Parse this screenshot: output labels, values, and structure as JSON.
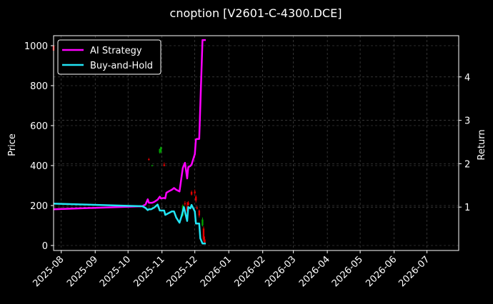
{
  "chart_data": {
    "type": "line",
    "title": "cnoption [V2601-C-4300.DCE]",
    "ylabel": "Price",
    "y2label": "Return",
    "xlim": [
      "2025-07-25",
      "2026-07-30"
    ],
    "ylim": [
      -25,
      1050
    ],
    "y2lim": [
      0.0,
      4.95
    ],
    "x_ticks": [
      "2025-08",
      "2025-09",
      "2025-10",
      "2025-11",
      "2025-12",
      "2026-01",
      "2026-02",
      "2026-03",
      "2026-04",
      "2026-05",
      "2026-06",
      "2026-07"
    ],
    "y_ticks": [
      0,
      200,
      400,
      600,
      800,
      1000
    ],
    "y2_ticks": [
      1,
      2,
      3,
      4
    ],
    "grid": true,
    "legend_position": "top-left",
    "series": [
      {
        "name": "AI Strategy",
        "axis": "right",
        "color": "#ff00ff",
        "points": [
          [
            "2025-07-25",
            0.95
          ],
          [
            "2025-10-14",
            1.02
          ],
          [
            "2025-10-17",
            1.06
          ],
          [
            "2025-10-19",
            1.18
          ],
          [
            "2025-10-20",
            1.1
          ],
          [
            "2025-10-23",
            1.1
          ],
          [
            "2025-10-25",
            1.12
          ],
          [
            "2025-10-28",
            1.17
          ],
          [
            "2025-10-30",
            1.24
          ],
          [
            "2025-10-31",
            1.2
          ],
          [
            "2025-11-03",
            1.21
          ],
          [
            "2025-11-04",
            1.2
          ],
          [
            "2025-11-05",
            1.33
          ],
          [
            "2025-11-07",
            1.36
          ],
          [
            "2025-11-10",
            1.4
          ],
          [
            "2025-11-12",
            1.44
          ],
          [
            "2025-11-14",
            1.4
          ],
          [
            "2025-11-17",
            1.36
          ],
          [
            "2025-11-20",
            1.9
          ],
          [
            "2025-11-22",
            2.02
          ],
          [
            "2025-11-24",
            1.66
          ],
          [
            "2025-11-25",
            1.92
          ],
          [
            "2025-11-27",
            1.95
          ],
          [
            "2025-11-28",
            1.98
          ],
          [
            "2025-12-01",
            2.22
          ],
          [
            "2025-12-02",
            2.56
          ],
          [
            "2025-12-03",
            2.57
          ],
          [
            "2025-12-05",
            2.57
          ],
          [
            "2025-12-08",
            4.85
          ],
          [
            "2025-12-10",
            4.85
          ],
          [
            "2025-12-11",
            4.85
          ]
        ]
      },
      {
        "name": "Buy-and-Hold",
        "axis": "right",
        "color": "#22e4f4",
        "points": [
          [
            "2025-07-25",
            1.08
          ],
          [
            "2025-10-14",
            1.02
          ],
          [
            "2025-10-17",
            0.98
          ],
          [
            "2025-10-19",
            0.93
          ],
          [
            "2025-10-20",
            0.95
          ],
          [
            "2025-10-22",
            0.95
          ],
          [
            "2025-10-25",
            0.99
          ],
          [
            "2025-10-28",
            1.06
          ],
          [
            "2025-10-30",
            0.92
          ],
          [
            "2025-11-03",
            0.92
          ],
          [
            "2025-11-04",
            0.82
          ],
          [
            "2025-11-07",
            0.86
          ],
          [
            "2025-11-10",
            0.9
          ],
          [
            "2025-11-12",
            0.9
          ],
          [
            "2025-11-14",
            0.76
          ],
          [
            "2025-11-17",
            0.64
          ],
          [
            "2025-11-19",
            0.8
          ],
          [
            "2025-11-21",
            1.0
          ],
          [
            "2025-11-24",
            0.68
          ],
          [
            "2025-11-25",
            1.0
          ],
          [
            "2025-11-27",
            0.97
          ],
          [
            "2025-11-28",
            1.05
          ],
          [
            "2025-12-01",
            0.9
          ],
          [
            "2025-12-02",
            0.62
          ],
          [
            "2025-12-05",
            0.62
          ],
          [
            "2025-12-06",
            0.28
          ],
          [
            "2025-12-08",
            0.16
          ],
          [
            "2025-12-10",
            0.16
          ],
          [
            "2025-12-11",
            0.16
          ]
        ]
      }
    ],
    "candles": [
      {
        "x": "2025-07-25",
        "open": 1000,
        "high": 1010,
        "low": 965,
        "close": 975
      },
      {
        "x": "2025-10-20",
        "open": 432,
        "high": 438,
        "low": 425,
        "close": 428
      },
      {
        "x": "2025-10-23",
        "open": 398,
        "high": 404,
        "low": 396,
        "close": 401
      },
      {
        "x": "2025-10-30",
        "open": 465,
        "high": 485,
        "low": 460,
        "close": 482
      },
      {
        "x": "2025-10-31",
        "open": 470,
        "high": 495,
        "low": 462,
        "close": 492
      },
      {
        "x": "2025-11-03",
        "open": 405,
        "high": 415,
        "low": 396,
        "close": 398
      },
      {
        "x": "2025-11-20",
        "open": 150,
        "high": 205,
        "low": 145,
        "close": 200
      },
      {
        "x": "2025-11-22",
        "open": 212,
        "high": 222,
        "low": 198,
        "close": 206
      },
      {
        "x": "2025-11-24",
        "open": 195,
        "high": 218,
        "low": 168,
        "close": 172
      },
      {
        "x": "2025-11-25",
        "open": 215,
        "high": 222,
        "low": 200,
        "close": 203
      },
      {
        "x": "2025-11-28",
        "open": 268,
        "high": 275,
        "low": 250,
        "close": 255
      },
      {
        "x": "2025-12-01",
        "open": 270,
        "high": 280,
        "low": 255,
        "close": 262
      },
      {
        "x": "2025-12-02",
        "open": 245,
        "high": 252,
        "low": 215,
        "close": 225
      },
      {
        "x": "2025-12-03",
        "open": 190,
        "high": 198,
        "low": 180,
        "close": 185
      },
      {
        "x": "2025-12-05",
        "open": 175,
        "high": 180,
        "low": 140,
        "close": 150
      },
      {
        "x": "2025-12-08",
        "open": 100,
        "high": 140,
        "low": 95,
        "close": 130
      },
      {
        "x": "2025-12-09",
        "open": 85,
        "high": 95,
        "low": 20,
        "close": 30
      },
      {
        "x": "2025-12-10",
        "open": 30,
        "high": 45,
        "low": 10,
        "close": 15
      }
    ],
    "colors": {
      "background": "#000000",
      "text": "#ffffff",
      "grid": "#555555",
      "up_candle": "#00a000",
      "down_candle": "#e00000",
      "legend_border": "#ffffff"
    }
  }
}
